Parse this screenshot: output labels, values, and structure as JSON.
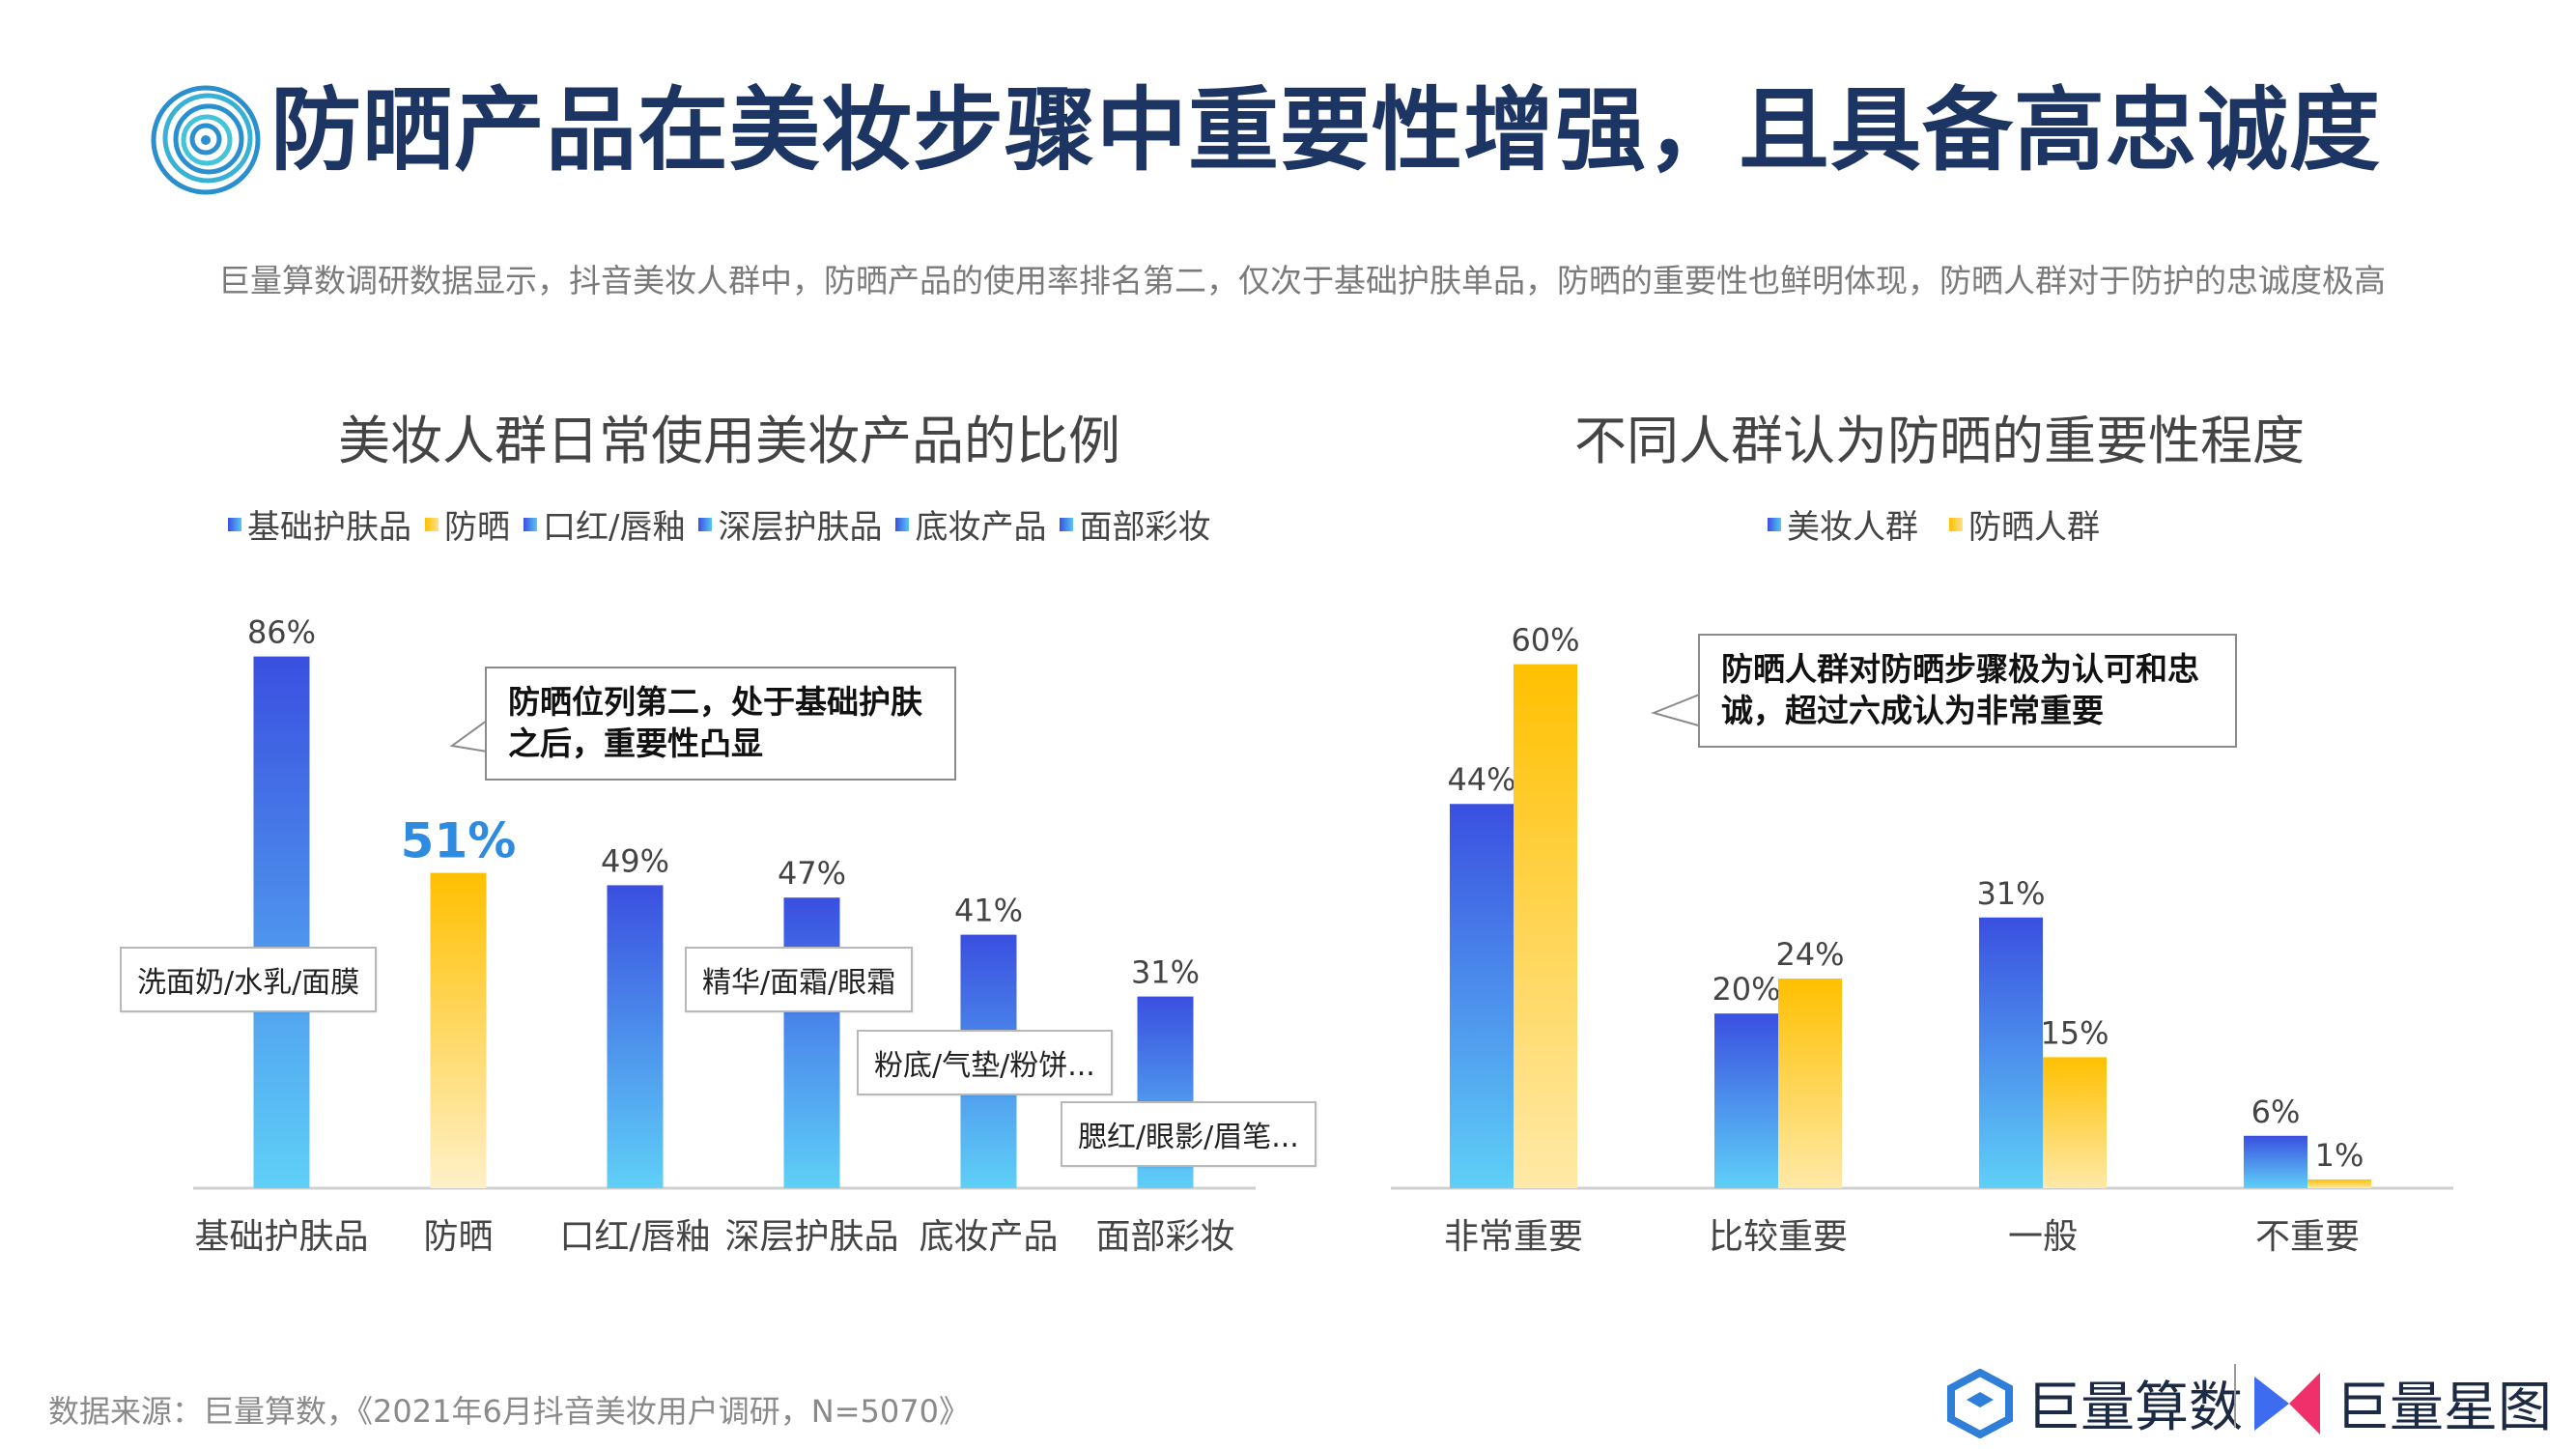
{
  "header": {
    "title": "防晒产品在美妆步骤中重要性增强，且具备高忠诚度",
    "subtitle": "巨量算数调研数据显示，抖音美妆人群中，防晒产品的使用率排名第二，仅次于基础护肤单品，防晒的重要性也鲜明体现，防晒人群对于防护的忠诚度极高"
  },
  "chart_data": [
    {
      "type": "bar",
      "title": "美妆人群日常使用美妆产品的比例",
      "categories": [
        "基础护肤品",
        "防晒",
        "口红/唇釉",
        "深层护肤品",
        "底妆产品",
        "面部彩妆"
      ],
      "values": [
        86,
        51,
        49,
        47,
        41,
        31
      ],
      "value_labels": [
        "86%",
        "51%",
        "49%",
        "47%",
        "41%",
        "31%"
      ],
      "legend": [
        "基础护肤品",
        "防晒",
        "口红/唇釉",
        "深层护肤品",
        "底妆产品",
        "面部彩妆"
      ],
      "highlight_index": 1,
      "ylim": [
        0,
        100
      ],
      "annotations": {
        "tags": [
          "洗面奶/水乳/面膜",
          "精华/面霜/眼霜",
          "粉底/气垫/粉饼...",
          "腮红/眼影/眉笔..."
        ],
        "callout": "防晒位列第二，处于基础护肤之后，重要性凸显"
      },
      "colors": {
        "blue_top": "#3a4fe0",
        "blue_bottom": "#5fd0f7",
        "yellow_top": "#ffc000",
        "yellow_bottom": "#fff0c8"
      }
    },
    {
      "type": "bar",
      "title": "不同人群认为防晒的重要性程度",
      "categories": [
        "非常重要",
        "比较重要",
        "一般",
        "不重要"
      ],
      "series": [
        {
          "name": "美妆人群",
          "values": [
            44,
            20,
            31,
            6
          ],
          "labels": [
            "44%",
            "20%",
            "31%",
            "6%"
          ]
        },
        {
          "name": "防晒人群",
          "values": [
            60,
            24,
            15,
            1
          ],
          "labels": [
            "60%",
            "24%",
            "15%",
            "1%"
          ]
        }
      ],
      "ylim": [
        0,
        100
      ],
      "callout": "防晒人群对防晒步骤极为认可和忠诚，超过六成认为非常重要",
      "colors": {
        "blue_top": "#3a4fe0",
        "blue_bottom": "#5fd0f7",
        "yellow_top": "#ffc000",
        "yellow_bottom": "#ffe9a8"
      }
    }
  ],
  "footer": {
    "source": "数据来源：巨量算数，《2021年6月抖音美妆用户调研，N=5070》",
    "brand1": "巨量算数",
    "brand2": "巨量星图"
  }
}
